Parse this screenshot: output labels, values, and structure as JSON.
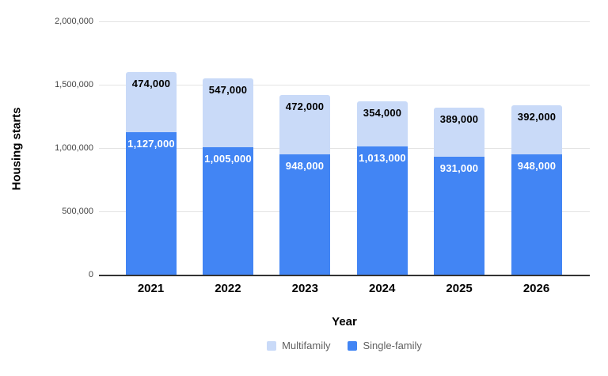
{
  "chart_data": {
    "type": "bar",
    "stacked": true,
    "orientation": "vertical",
    "title": "",
    "xlabel": "Year",
    "ylabel": "Housing starts",
    "categories": [
      "2021",
      "2022",
      "2023",
      "2024",
      "2025",
      "2026"
    ],
    "series": [
      {
        "name": "Single-family",
        "color": "#4285F4",
        "label_color": "#FFFFFF",
        "values": [
          1127000,
          1005000,
          948000,
          1013000,
          931000,
          948000
        ],
        "labels": [
          "1,127,000",
          "1,005,000",
          "948,000",
          "1,013,000",
          "931,000",
          "948,000"
        ]
      },
      {
        "name": "Multifamily",
        "color": "#C9DAF8",
        "label_color": "#000000",
        "values": [
          474000,
          547000,
          472000,
          354000,
          389000,
          392000
        ],
        "labels": [
          "474,000",
          "547,000",
          "472,000",
          "354,000",
          "389,000",
          "392,000"
        ]
      }
    ],
    "ylim": [
      0,
      2000000
    ],
    "yticks": [
      {
        "value": 0,
        "label": "0"
      },
      {
        "value": 500000,
        "label": "500,000"
      },
      {
        "value": 1000000,
        "label": "1,000,000"
      },
      {
        "value": 1500000,
        "label": "1,500,000"
      },
      {
        "value": 2000000,
        "label": "2,000,000"
      }
    ],
    "grid": true,
    "legend_position": "bottom",
    "legend": [
      {
        "label": "Multifamily",
        "color": "#C9DAF8"
      },
      {
        "label": "Single-family",
        "color": "#4285F4"
      }
    ]
  }
}
